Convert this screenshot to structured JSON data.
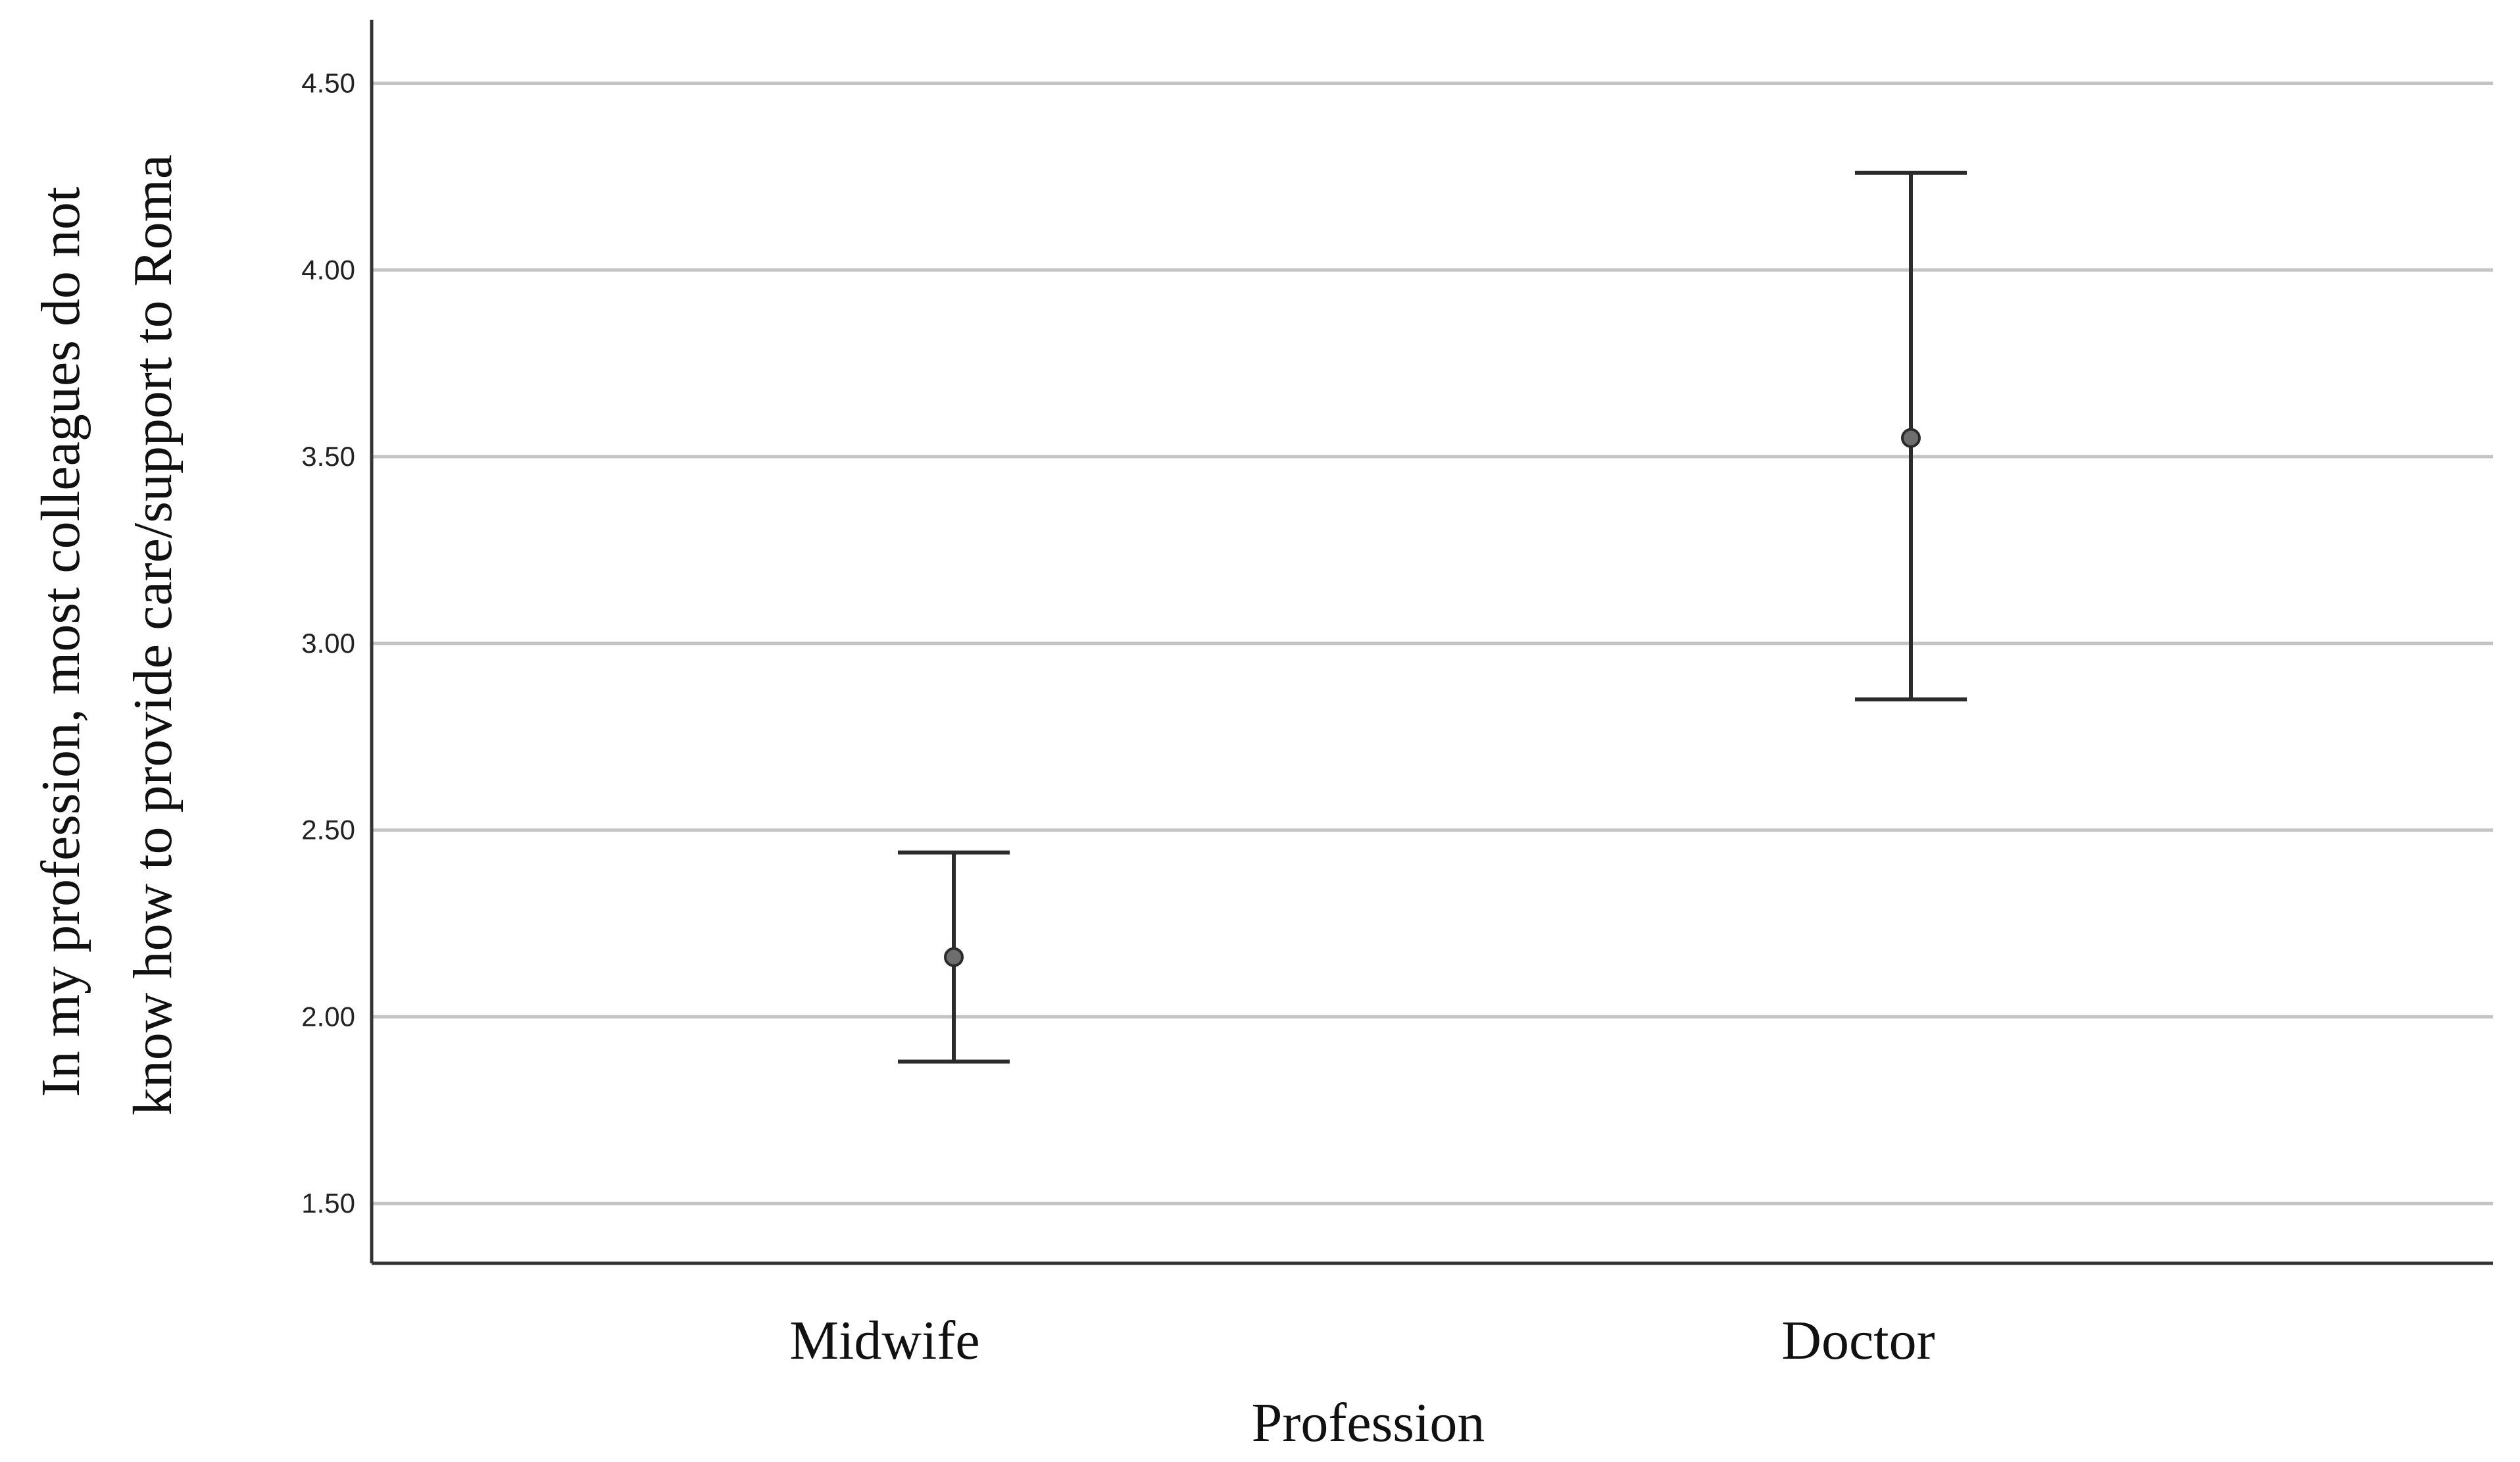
{
  "chart_data": {
    "type": "errorbar",
    "title": "",
    "xlabel": "Profession",
    "ylabel_lines": [
      "In my profession, most colleagues do not",
      "know how to provide care/support to Roma"
    ],
    "categories": [
      "Midwife",
      "Doctor"
    ],
    "series": [
      {
        "points": [
          {
            "category": "Midwife",
            "mean": 2.16,
            "lower": 1.88,
            "upper": 2.44
          },
          {
            "category": "Doctor",
            "mean": 3.55,
            "lower": 2.85,
            "upper": 4.26
          }
        ]
      }
    ],
    "ylim": [
      1.34,
      4.67
    ],
    "yticks": [
      1.5,
      2.0,
      2.5,
      3.0,
      3.5,
      4.0,
      4.5
    ],
    "ytick_labels": [
      "1.50",
      "2.00",
      "2.50",
      "3.00",
      "3.50",
      "4.00",
      "4.50"
    ],
    "grid": true,
    "colors": {
      "gridline": "#c4c4c4",
      "marker": "#6e6e6e",
      "line": "#2b2b2b"
    }
  }
}
